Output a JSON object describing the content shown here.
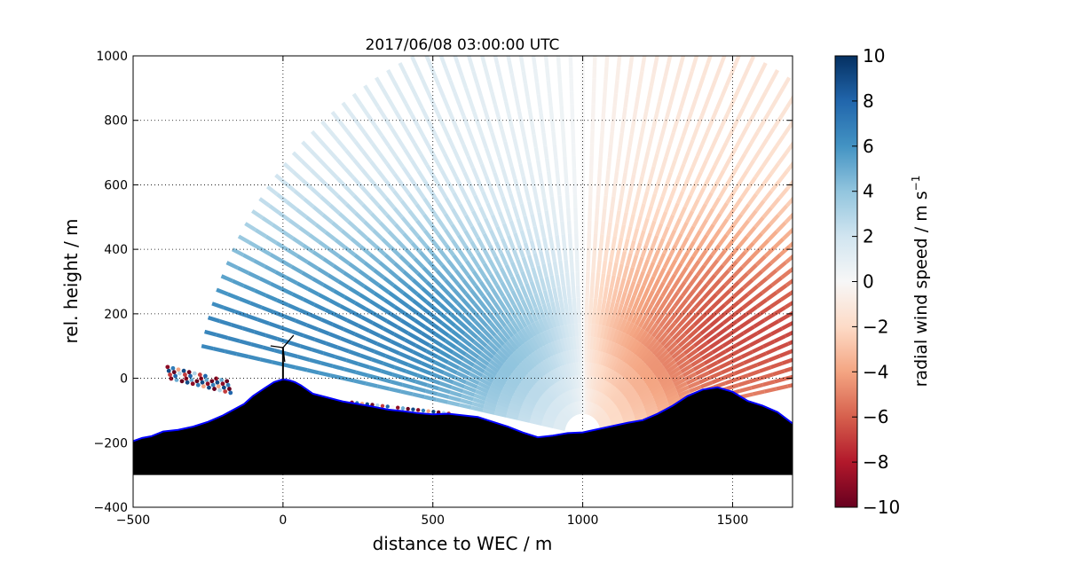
{
  "chart_data": {
    "type": "heatmap",
    "title": "2017/06/08 03:00:00 UTC",
    "xlabel": "distance to WEC / m",
    "ylabel": "rel. height / m",
    "xlim": [
      -500,
      1700
    ],
    "ylim": [
      -400,
      1000
    ],
    "x_ticks": [
      -500,
      0,
      500,
      1000,
      1500
    ],
    "y_ticks": [
      -400,
      -200,
      0,
      200,
      400,
      600,
      800,
      1000
    ],
    "grid": "dotted at major ticks",
    "colorbar": {
      "label": "radial wind speed / m s",
      "label_superscript": "−1",
      "range": [
        -10,
        10
      ],
      "ticks": [
        -10,
        -8,
        -6,
        -4,
        -2,
        0,
        2,
        4,
        6,
        8,
        10
      ],
      "colormap": "RdBu",
      "colors": [
        "#67001f",
        "#b2182b",
        "#d6604d",
        "#f4a582",
        "#fddbc7",
        "#f7f7f7",
        "#d1e5f0",
        "#92c5de",
        "#4393c3",
        "#2166ac",
        "#053061"
      ]
    },
    "scan": {
      "origin": [
        1000,
        -170
      ],
      "range_m": 1300
    },
    "terrain_profile": {
      "x": [
        -500,
        -470,
        -440,
        -400,
        -350,
        -300,
        -250,
        -200,
        -170,
        -130,
        -100,
        -60,
        -30,
        0,
        20,
        40,
        60,
        100,
        150,
        200,
        250,
        300,
        350,
        400,
        450,
        500,
        550,
        600,
        650,
        700,
        750,
        800,
        850,
        900,
        950,
        1000,
        1050,
        1100,
        1150,
        1200,
        1250,
        1300,
        1350,
        1400,
        1450,
        1500,
        1550,
        1600,
        1650,
        1700
      ],
      "y": [
        -195,
        -185,
        -180,
        -165,
        -160,
        -150,
        -135,
        -115,
        -100,
        -80,
        -55,
        -30,
        -12,
        -3,
        -6,
        -12,
        -22,
        -48,
        -60,
        -72,
        -80,
        -88,
        -97,
        -102,
        -108,
        -112,
        -110,
        -115,
        -120,
        -135,
        -150,
        -168,
        -183,
        -178,
        -170,
        -168,
        -158,
        -148,
        -138,
        -130,
        -110,
        -85,
        -55,
        -35,
        -28,
        -42,
        -70,
        -85,
        -105,
        -140
      ],
      "fill_color": "#000000",
      "edge_color": "#0000ff"
    },
    "turbine": {
      "x": 0,
      "hub_height": 95
    }
  }
}
